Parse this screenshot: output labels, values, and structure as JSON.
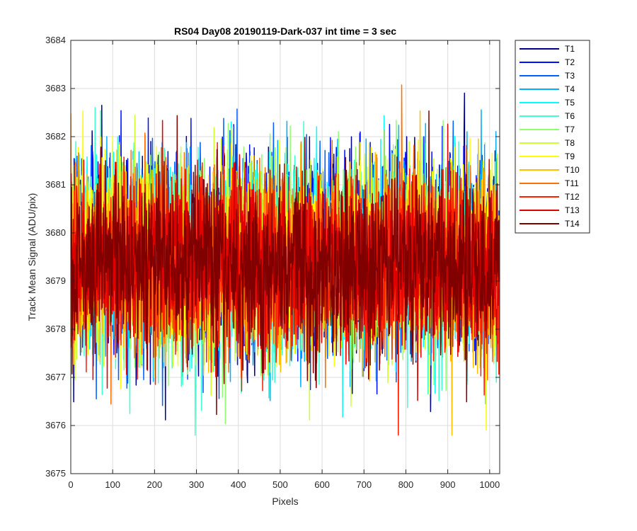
{
  "chart_data": {
    "type": "line",
    "title": "RS04 Day08 20190119-Dark-037 int time = 3 sec",
    "xlabel": "Pixels",
    "ylabel": "Track Mean Signal (ADU/pix)",
    "xlim": [
      0,
      1024
    ],
    "ylim": [
      3675,
      3684
    ],
    "xticks": [
      0,
      100,
      200,
      300,
      400,
      500,
      600,
      700,
      800,
      900,
      1000
    ],
    "yticks": [
      3675,
      3676,
      3677,
      3678,
      3679,
      3680,
      3681,
      3682,
      3683,
      3684
    ],
    "grid": true,
    "legend_position": "outside-top-right",
    "series": [
      {
        "name": "T1",
        "color": "#00008f",
        "mean": 3679.6,
        "sd": 1.05
      },
      {
        "name": "T2",
        "color": "#0010ff",
        "mean": 3679.6,
        "sd": 1.05
      },
      {
        "name": "T3",
        "color": "#005fff",
        "mean": 3679.5,
        "sd": 1.0
      },
      {
        "name": "T4",
        "color": "#00afff",
        "mean": 3679.5,
        "sd": 1.0
      },
      {
        "name": "T5",
        "color": "#00ffff",
        "mean": 3679.4,
        "sd": 1.0
      },
      {
        "name": "T6",
        "color": "#40ffcf",
        "mean": 3679.4,
        "sd": 1.0
      },
      {
        "name": "T7",
        "color": "#8fff70",
        "mean": 3679.5,
        "sd": 0.95
      },
      {
        "name": "T8",
        "color": "#cfff30",
        "mean": 3679.5,
        "sd": 0.95
      },
      {
        "name": "T9",
        "color": "#ffff00",
        "mean": 3679.5,
        "sd": 0.95
      },
      {
        "name": "T10",
        "color": "#ffbf00",
        "mean": 3679.4,
        "sd": 0.95
      },
      {
        "name": "T11",
        "color": "#ff7000",
        "mean": 3679.4,
        "sd": 0.95
      },
      {
        "name": "T12",
        "color": "#ff2000",
        "mean": 3679.4,
        "sd": 0.9
      },
      {
        "name": "T13",
        "color": "#df0000",
        "mean": 3679.4,
        "sd": 0.9
      },
      {
        "name": "T14",
        "color": "#800000",
        "mean": 3679.3,
        "sd": 0.9
      }
    ],
    "legend_colors": [
      "#00008f",
      "#0010ff",
      "#005fff",
      "#00afff",
      "#00ffff",
      "#40ffcf",
      "#8fff70",
      "#cfff30",
      "#ffff00",
      "#ffbf00",
      "#ff7000",
      "#ff2000",
      "#df0000",
      "#800000"
    ],
    "points_per_series": 1024
  }
}
